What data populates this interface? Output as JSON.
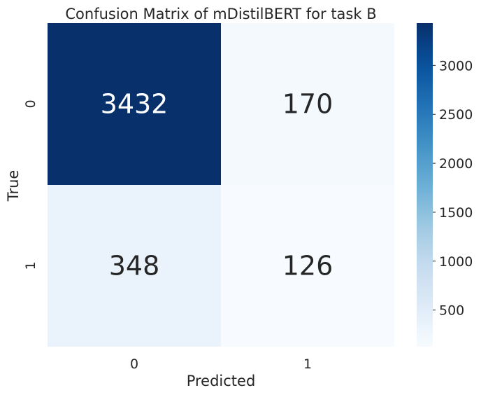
{
  "chart_data": {
    "type": "heatmap",
    "title": "Confusion Matrix of mDistilBERT for task B",
    "xlabel": "Predicted",
    "ylabel": "True",
    "x_categories": [
      "0",
      "1"
    ],
    "y_categories": [
      "0",
      "1"
    ],
    "values": [
      [
        3432,
        170
      ],
      [
        348,
        126
      ]
    ],
    "colormap": "Blues",
    "color_min": 126,
    "color_max": 3432,
    "colorbar_ticks": [
      500,
      1000,
      1500,
      2000,
      2500,
      3000
    ],
    "colors": {
      "low": "#f7fbff",
      "high": "#08306b",
      "text_dark": "#262626",
      "text_light": "#ffffff"
    }
  }
}
